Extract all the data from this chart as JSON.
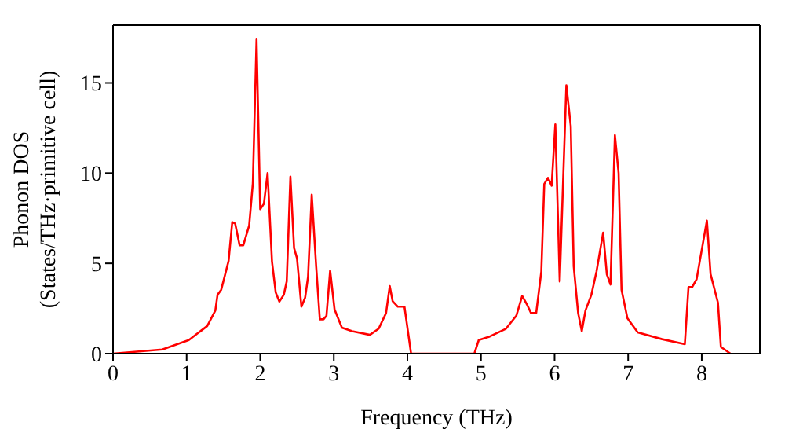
{
  "chart_data": {
    "type": "line",
    "xlabel": "Frequency (THz)",
    "ylabel": "Phonon DOS\n(States/THz·primitive cell)",
    "x": [
      0,
      0.67,
      1.03,
      1.28,
      1.39,
      1.42,
      1.47,
      1.57,
      1.62,
      1.66,
      1.72,
      1.77,
      1.85,
      1.9,
      1.95,
      2.0,
      2.05,
      2.1,
      2.16,
      2.21,
      2.26,
      2.32,
      2.36,
      2.41,
      2.46,
      2.5,
      2.56,
      2.61,
      2.65,
      2.7,
      2.76,
      2.81,
      2.86,
      2.9,
      2.95,
      3.01,
      3.11,
      3.25,
      3.49,
      3.61,
      3.71,
      3.76,
      3.8,
      3.87,
      3.96,
      4.05,
      4.91,
      4.97,
      5.12,
      5.34,
      5.48,
      5.56,
      5.63,
      5.68,
      5.75,
      5.82,
      5.86,
      5.91,
      5.96,
      6.01,
      6.07,
      6.16,
      6.22,
      6.26,
      6.32,
      6.37,
      6.42,
      6.5,
      6.57,
      6.66,
      6.71,
      6.76,
      6.82,
      6.87,
      6.91,
      6.99,
      7.13,
      7.46,
      7.77,
      7.82,
      7.87,
      7.93,
      8.07,
      8.12,
      8.22,
      8.26,
      8.39
    ],
    "series": [
      {
        "color": "#ff0000",
        "values": [
          0,
          0.23,
          0.75,
          1.53,
          2.39,
          3.26,
          3.54,
          5.13,
          7.29,
          7.2,
          6.0,
          6.0,
          7.1,
          9.45,
          17.4,
          8.0,
          8.3,
          10.0,
          5.1,
          3.4,
          2.88,
          3.26,
          4.0,
          9.8,
          5.85,
          5.27,
          2.6,
          3.1,
          4.26,
          8.8,
          4.84,
          1.9,
          1.9,
          2.1,
          4.6,
          2.45,
          1.44,
          1.24,
          1.04,
          1.38,
          2.25,
          3.74,
          2.9,
          2.6,
          2.6,
          0,
          0,
          0.75,
          0.95,
          1.38,
          2.1,
          3.2,
          2.68,
          2.25,
          2.25,
          4.55,
          9.4,
          9.74,
          9.3,
          12.7,
          4.0,
          14.87,
          12.6,
          4.84,
          2.25,
          1.24,
          2.39,
          3.26,
          4.55,
          6.7,
          4.4,
          3.83,
          12.1,
          10.0,
          3.54,
          1.96,
          1.18,
          0.8,
          0.52,
          3.69,
          3.69,
          4.12,
          7.37,
          4.4,
          2.83,
          0.37,
          0
        ]
      }
    ],
    "xlim": [
      0,
      8.79
    ],
    "ylim": [
      0,
      18.2
    ],
    "xticks": [
      0,
      1,
      2,
      3,
      4,
      5,
      6,
      7,
      8
    ],
    "yticks": [
      0,
      5,
      10,
      15
    ],
    "grid": false,
    "legend": false,
    "marker": "none",
    "line_style": "solid"
  }
}
